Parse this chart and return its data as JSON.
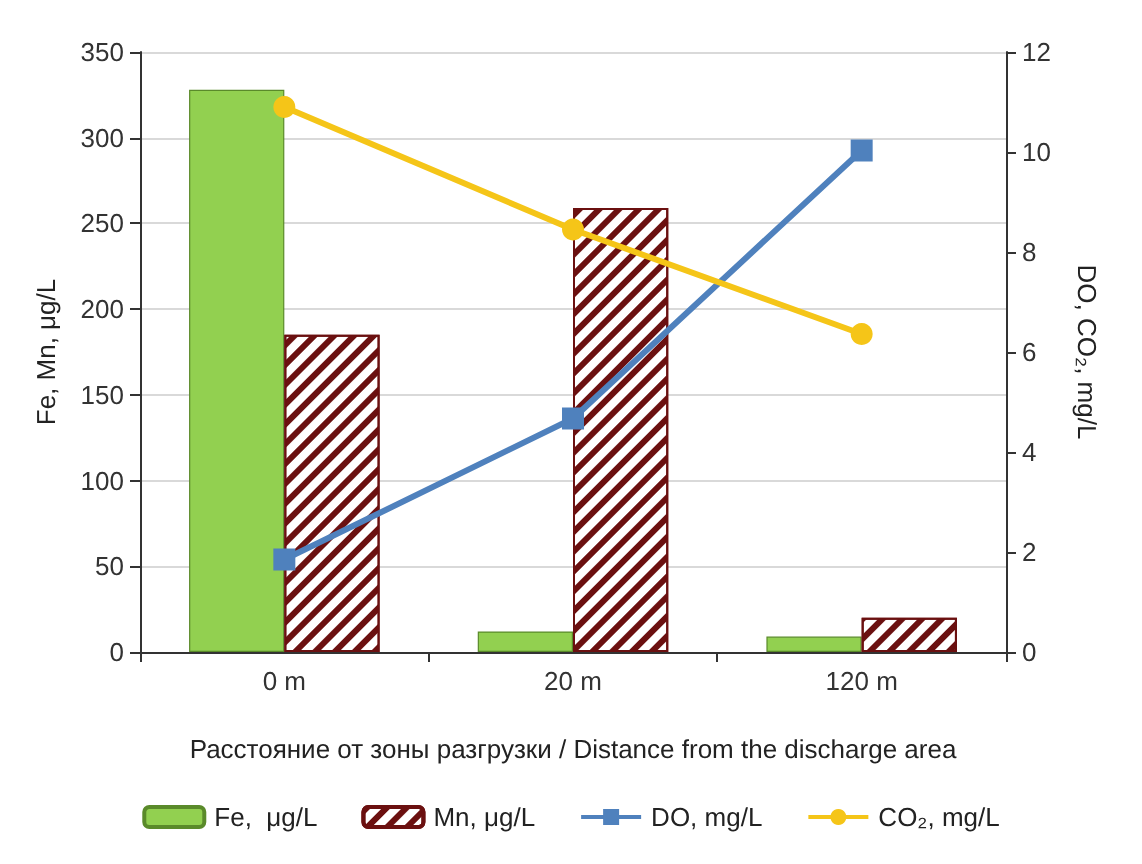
{
  "chart_data": {
    "type": "bar",
    "xlabel": "Расстояние от зоны разгрузки / Distance from the discharge area",
    "ylabel": "Fe, Mn, μg/L",
    "y2label": "DO, CO₂, mg/L",
    "categories": [
      "0 m",
      "20 m",
      "120 m"
    ],
    "series": [
      {
        "name": "Fe,  μg/L",
        "color": "#92d050",
        "values": [
          328,
          12,
          9
        ]
      },
      {
        "name": "Mn, μg/L",
        "color": "#6b1010",
        "values": [
          185,
          259,
          20
        ]
      },
      {
        "name": "DO, mg/L",
        "type": "line",
        "axis": "y2",
        "marker": "square",
        "color": "#4f81bd",
        "values": [
          1.85,
          4.67,
          10.03
        ]
      },
      {
        "name": "CO₂, mg/L",
        "type": "line",
        "axis": "y2",
        "marker": "circle",
        "color": "#f5c518",
        "values": [
          10.9,
          8.45,
          6.36
        ]
      }
    ],
    "ylim": [
      0,
      350
    ],
    "yticks": [
      0,
      50,
      100,
      150,
      200,
      250,
      300,
      350
    ],
    "y2lim": [
      0,
      12
    ],
    "y2ticks": [
      0,
      2,
      4,
      6,
      8,
      10,
      12
    ],
    "grid": "y",
    "legend": "bottom"
  }
}
